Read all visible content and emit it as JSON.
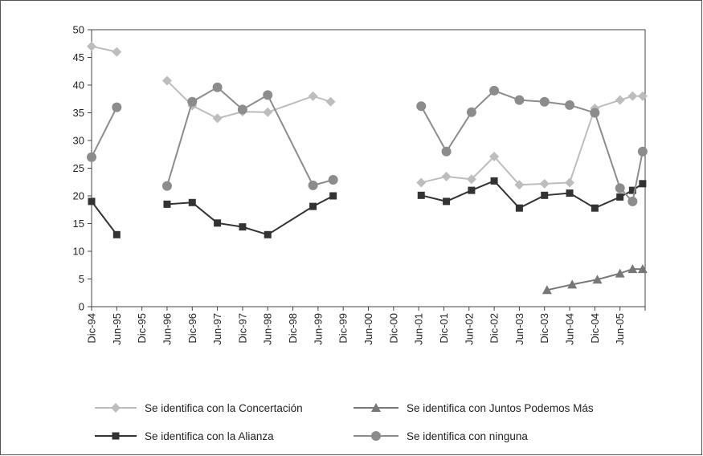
{
  "chart_data": {
    "type": "line",
    "title": "",
    "xlabel": "",
    "ylabel": "",
    "ylim": [
      0,
      50
    ],
    "yticks": [
      "0",
      "5",
      "10",
      "15",
      "20",
      "25",
      "30",
      "35",
      "40",
      "45",
      "50"
    ],
    "categories": [
      "Dic-94",
      "Jun-95",
      "Dic-95",
      "Jun-96",
      "Dic-96",
      "Jun-97",
      "Dic-97",
      "Jun-98",
      "Dic-98",
      "Jun-99",
      "Dic-99",
      "Jun-00",
      "Dic-00",
      "Jun-01",
      "Dic-01",
      "Jun-02",
      "Dic-02",
      "Jun-03",
      "Dic-03",
      "Jun-04",
      "Dic-04",
      "Jun-05"
    ],
    "grid": false,
    "legend_position": "bottom",
    "series": [
      {
        "name": "Se identifica con la Concertación",
        "color": "#bdbdbd",
        "marker": "diamond",
        "segments": [
          [
            [
              0,
              47
            ],
            [
              1,
              46
            ]
          ],
          [
            [
              3,
              40.8
            ],
            [
              4,
              36.3
            ],
            [
              5,
              34
            ],
            [
              6,
              35.2
            ],
            [
              7,
              35.1
            ],
            [
              8.8,
              38
            ],
            [
              9.5,
              37
            ]
          ],
          [
            [
              13.1,
              22.4
            ],
            [
              14.1,
              23.5
            ],
            [
              15.1,
              23
            ],
            [
              16,
              27.1
            ],
            [
              17,
              22
            ],
            [
              18,
              22.2
            ],
            [
              19,
              22.4
            ],
            [
              20,
              35.8
            ],
            [
              21,
              37.3
            ],
            [
              21.5,
              38
            ],
            [
              21.9,
              38
            ]
          ]
        ]
      },
      {
        "name": "Se identifica con Juntos Podemos Más",
        "color": "#777777",
        "marker": "triangle",
        "segments": [
          [
            [
              18.1,
              3
            ],
            [
              19.1,
              4
            ],
            [
              20.1,
              4.9
            ],
            [
              21,
              6
            ],
            [
              21.5,
              6.8
            ],
            [
              21.9,
              6.8
            ]
          ]
        ]
      },
      {
        "name": "Se identifica con la Alianza",
        "color": "#333333",
        "marker": "square",
        "segments": [
          [
            [
              0,
              19
            ],
            [
              1,
              13
            ]
          ],
          [
            [
              3,
              18.5
            ],
            [
              4,
              18.8
            ],
            [
              5,
              15.1
            ],
            [
              6,
              14.4
            ],
            [
              7,
              13
            ],
            [
              8.8,
              18.1
            ],
            [
              9.6,
              20
            ]
          ],
          [
            [
              13.1,
              20.1
            ],
            [
              14.1,
              19
            ],
            [
              15.1,
              21
            ],
            [
              16,
              22.7
            ],
            [
              17,
              17.8
            ],
            [
              18,
              20.1
            ],
            [
              19,
              20.5
            ],
            [
              20,
              17.8
            ],
            [
              21,
              19.8
            ],
            [
              21.5,
              21
            ],
            [
              21.9,
              22.2
            ]
          ]
        ]
      },
      {
        "name": "Se identifica con ninguna",
        "color": "#8c8c8c",
        "marker": "circle",
        "segments": [
          [
            [
              0,
              27
            ],
            [
              1,
              36
            ]
          ],
          [
            [
              3,
              21.8
            ],
            [
              4,
              37
            ],
            [
              5,
              39.6
            ],
            [
              6,
              35.6
            ],
            [
              7,
              38.2
            ],
            [
              8.8,
              21.9
            ],
            [
              9.6,
              22.9
            ]
          ],
          [
            [
              13.1,
              36.2
            ],
            [
              14.1,
              28
            ],
            [
              15.1,
              35.1
            ],
            [
              16,
              39
            ],
            [
              17,
              37.3
            ],
            [
              18,
              37
            ],
            [
              19,
              36.4
            ],
            [
              20,
              35
            ],
            [
              21,
              21.4
            ],
            [
              21.5,
              19
            ],
            [
              21.9,
              28
            ]
          ]
        ]
      }
    ],
    "legend_order": [
      0,
      1,
      2,
      3
    ]
  }
}
